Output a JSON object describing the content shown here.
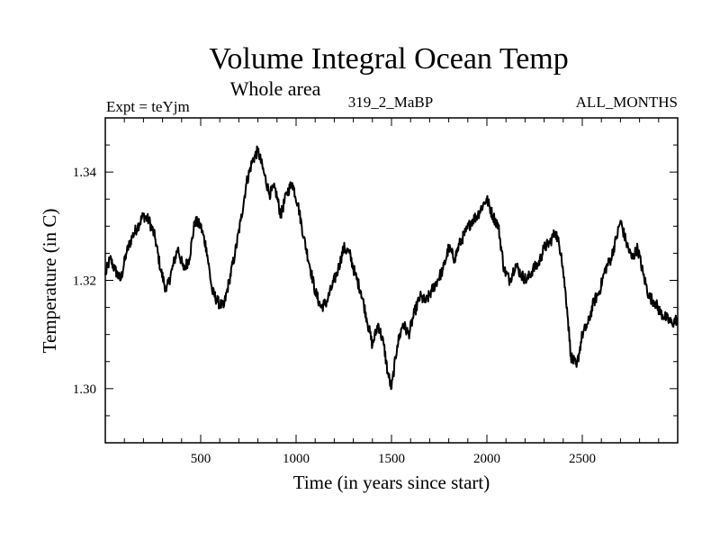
{
  "chart_data": {
    "type": "line",
    "title": "Volume Integral Ocean Temp",
    "subtitle": "Whole area",
    "expt_label": "Expt = teYjm",
    "run_label": "319_2_MaBP",
    "months_label": "ALL_MONTHS",
    "xlabel": "Time (in years since start)",
    "ylabel": "Temperature (in C)",
    "xlim": [
      0,
      3000
    ],
    "ylim": [
      1.29,
      1.35
    ],
    "xticks": [
      500,
      1000,
      1500,
      2000,
      2500
    ],
    "xtick_labels": [
      "500",
      "1000",
      "1500",
      "2000",
      "2500"
    ],
    "yticks": [
      1.3,
      1.32,
      1.34
    ],
    "ytick_labels": [
      "1.30",
      "1.32",
      "1.34"
    ],
    "grid": false,
    "series": [
      {
        "name": "Volume integral ocean temperature",
        "color": "#000000",
        "x": [
          0,
          25,
          50,
          80,
          110,
          140,
          170,
          200,
          230,
          260,
          290,
          320,
          350,
          380,
          410,
          440,
          470,
          500,
          530,
          560,
          590,
          620,
          650,
          680,
          710,
          740,
          770,
          800,
          830,
          860,
          890,
          920,
          950,
          980,
          1010,
          1040,
          1070,
          1100,
          1130,
          1160,
          1190,
          1220,
          1250,
          1280,
          1310,
          1340,
          1370,
          1400,
          1430,
          1460,
          1480,
          1500,
          1530,
          1560,
          1590,
          1620,
          1650,
          1680,
          1710,
          1740,
          1770,
          1800,
          1830,
          1860,
          1890,
          1920,
          1950,
          1980,
          2000,
          2030,
          2060,
          2090,
          2120,
          2150,
          2180,
          2210,
          2240,
          2270,
          2300,
          2330,
          2360,
          2390,
          2420,
          2440,
          2470,
          2500,
          2530,
          2560,
          2590,
          2620,
          2650,
          2680,
          2700,
          2730,
          2760,
          2790,
          2820,
          2850,
          2880,
          2910,
          2940,
          2970,
          3000
        ],
        "values": [
          1.321,
          1.324,
          1.322,
          1.32,
          1.325,
          1.328,
          1.33,
          1.332,
          1.331,
          1.328,
          1.322,
          1.318,
          1.322,
          1.326,
          1.322,
          1.324,
          1.331,
          1.33,
          1.326,
          1.318,
          1.316,
          1.315,
          1.32,
          1.325,
          1.331,
          1.338,
          1.342,
          1.344,
          1.34,
          1.336,
          1.337,
          1.332,
          1.336,
          1.338,
          1.334,
          1.328,
          1.323,
          1.318,
          1.315,
          1.316,
          1.319,
          1.322,
          1.326,
          1.325,
          1.321,
          1.318,
          1.313,
          1.308,
          1.312,
          1.308,
          1.303,
          1.3,
          1.308,
          1.312,
          1.31,
          1.314,
          1.317,
          1.316,
          1.318,
          1.32,
          1.322,
          1.326,
          1.324,
          1.327,
          1.329,
          1.331,
          1.332,
          1.334,
          1.335,
          1.332,
          1.33,
          1.322,
          1.32,
          1.323,
          1.321,
          1.32,
          1.322,
          1.323,
          1.326,
          1.327,
          1.329,
          1.325,
          1.315,
          1.306,
          1.304,
          1.31,
          1.312,
          1.316,
          1.318,
          1.322,
          1.324,
          1.328,
          1.331,
          1.327,
          1.324,
          1.326,
          1.321,
          1.317,
          1.316,
          1.314,
          1.313,
          1.312,
          1.313
        ]
      }
    ]
  }
}
